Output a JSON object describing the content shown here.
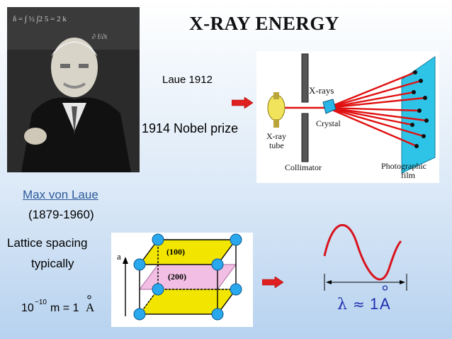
{
  "title": "X-RAY ENERGY",
  "laue_year": "Laue 1912",
  "nobel": "1914 Nobel prize",
  "person": {
    "name": "Max von Laue",
    "lifespan": "(1879-1960)"
  },
  "lattice": {
    "line1": "Lattice spacing",
    "line2": "typically",
    "formula_base": "10",
    "formula_exp": "−10",
    "formula_rest": "m = 1",
    "formula_unit": "A"
  },
  "diagram": {
    "xrays": "X-rays",
    "crystal": "Crystal",
    "tube_1": "X-ray",
    "tube_2": "tube",
    "collimator": "Collimator",
    "film_1": "Photographic",
    "film_2": "film"
  },
  "cube": {
    "plane_100": "(100)",
    "plane_200": "(200)",
    "axis_a": "a"
  },
  "lambda": {
    "symbol": "λ",
    "approx": "≈",
    "value": "1",
    "unit": "A"
  },
  "colors": {
    "arrow": "#e02020",
    "ray": "#e01010",
    "film": "#2ec4e8",
    "plane_yellow": "#f2e600",
    "plane_pink": "#f1b7e0",
    "node": "#2aa8ee",
    "wave": "#d8141d"
  }
}
